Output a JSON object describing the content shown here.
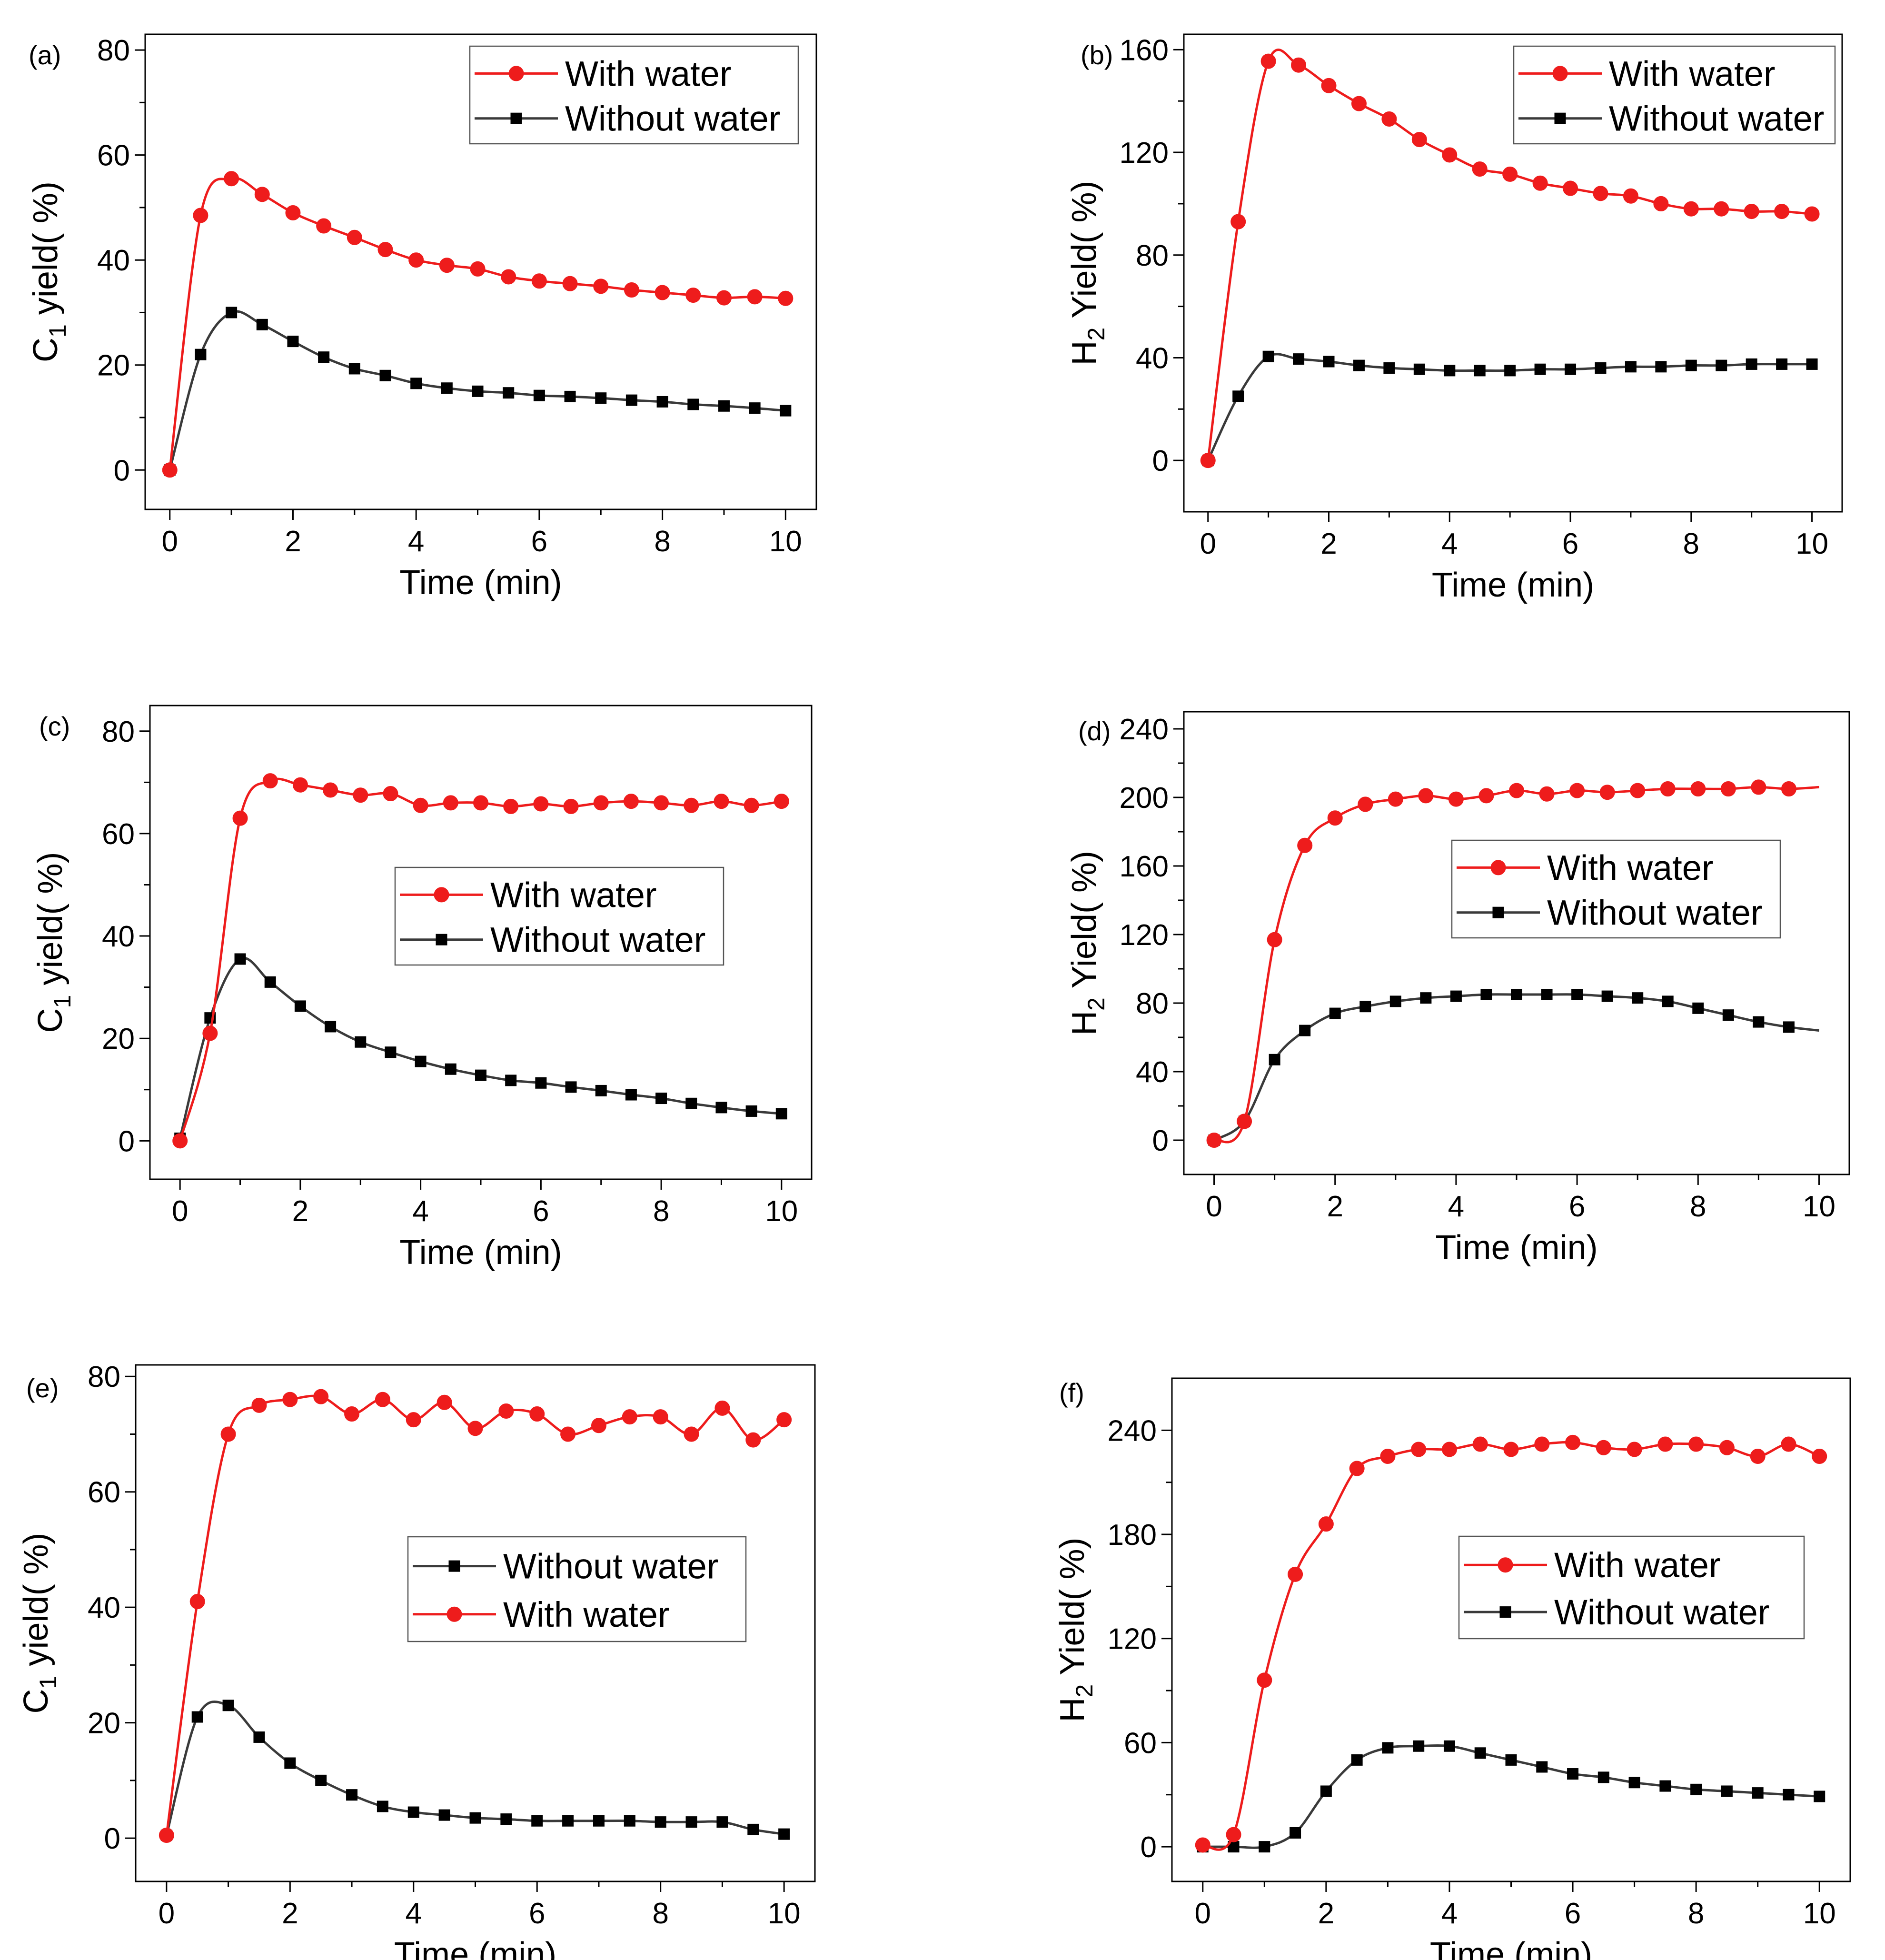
{
  "figure": {
    "background": "#ffffff"
  },
  "styles": {
    "with_color": "#ee1c1c",
    "without_color": "#000000",
    "without_line": "#3a3a3a"
  },
  "chart_data": [
    {
      "id": "a",
      "type": "line",
      "panel_label": "(a)",
      "xlabel": "Time (min)",
      "ylabel_main": "C",
      "ylabel_sub": "1",
      "ylabel_rest": " yield(   %)",
      "xlim": [
        -0.4,
        10.5
      ],
      "ylim": [
        -7.5,
        83
      ],
      "xticks": [
        0,
        2,
        4,
        6,
        8,
        10
      ],
      "yticks": [
        0,
        20,
        40,
        60,
        80
      ],
      "legend": {
        "position": "top-right",
        "order": [
          "with",
          "without"
        ]
      },
      "series": [
        {
          "key": "with",
          "name": "With water",
          "color": "#ee1c1c",
          "marker": "circle",
          "x": [
            0,
            0.5,
            1,
            1.5,
            2,
            2.5,
            3,
            3.5,
            4,
            4.5,
            5,
            5.5,
            6,
            6.5,
            7,
            7.5,
            8,
            8.5,
            9,
            9.5,
            10
          ],
          "y": [
            0,
            48.5,
            55.5,
            52.5,
            49,
            46.5,
            44.3,
            42,
            40,
            39,
            38.3,
            36.8,
            36,
            35.5,
            35,
            34.3,
            33.8,
            33.3,
            32.8,
            33,
            32.7
          ]
        },
        {
          "key": "without",
          "name": "Without water",
          "color": "#000000",
          "marker": "square",
          "x": [
            0,
            0.5,
            1,
            1.5,
            2,
            2.5,
            3,
            3.5,
            4,
            4.5,
            5,
            5.5,
            6,
            6.5,
            7,
            7.5,
            8,
            8.5,
            9,
            9.5,
            10
          ],
          "y": [
            0,
            22,
            30,
            27.7,
            24.5,
            21.5,
            19.3,
            18,
            16.5,
            15.6,
            15,
            14.7,
            14.2,
            14,
            13.7,
            13.3,
            13,
            12.5,
            12.2,
            11.8,
            11.3
          ]
        }
      ]
    },
    {
      "id": "b",
      "type": "line",
      "panel_label": "(b)",
      "xlabel": "Time (min)",
      "ylabel_main": "H",
      "ylabel_sub": "2",
      "ylabel_rest": " Yield(   %)",
      "xlim": [
        -0.4,
        10.5
      ],
      "ylim": [
        -20,
        166
      ],
      "xticks": [
        0,
        2,
        4,
        6,
        8,
        10
      ],
      "yticks": [
        0,
        40,
        80,
        120,
        160
      ],
      "legend": {
        "position": "top-right",
        "order": [
          "with",
          "without"
        ]
      },
      "series": [
        {
          "key": "with",
          "name": "With water",
          "color": "#ee1c1c",
          "marker": "circle",
          "x": [
            0,
            0.5,
            1,
            1.5,
            2,
            2.5,
            3,
            3.5,
            4,
            4.5,
            5,
            5.5,
            6,
            6.5,
            7,
            7.5,
            8,
            8.5,
            9,
            9.5,
            10
          ],
          "y": [
            0,
            93,
            155.5,
            154,
            146,
            139,
            133,
            125,
            119,
            113.5,
            111.5,
            108,
            106,
            104,
            103,
            100,
            98,
            98,
            97,
            97,
            96
          ]
        },
        {
          "key": "without",
          "name": "Without water",
          "color": "#000000",
          "marker": "square",
          "x": [
            0,
            0.5,
            1,
            1.5,
            2,
            2.5,
            3,
            3.5,
            4,
            4.5,
            5,
            5.5,
            6,
            6.5,
            7,
            7.5,
            8,
            8.5,
            9,
            9.5,
            10
          ],
          "y": [
            0,
            25,
            40.5,
            39.5,
            38.5,
            37,
            36,
            35.5,
            35,
            35,
            35,
            35.5,
            35.5,
            36,
            36.5,
            36.5,
            37,
            37,
            37.5,
            37.5,
            37.5
          ]
        }
      ]
    },
    {
      "id": "c",
      "type": "line",
      "panel_label": "(c)",
      "xlabel": "Time (min)",
      "ylabel_main": "C",
      "ylabel_sub": "1",
      "ylabel_rest": " yield(   %)",
      "xlim": [
        -0.5,
        10.5
      ],
      "ylim": [
        -7.5,
        85
      ],
      "xticks": [
        0,
        2,
        4,
        6,
        8,
        10
      ],
      "yticks": [
        0,
        20,
        40,
        60,
        80
      ],
      "legend": {
        "position": "center-right",
        "order": [
          "with",
          "without"
        ]
      },
      "series": [
        {
          "key": "with",
          "name": "With water",
          "color": "#ee1c1c",
          "marker": "circle",
          "x": [
            0,
            0.5,
            1,
            1.5,
            2,
            2.5,
            3,
            3.5,
            4,
            4.5,
            5,
            5.5,
            6,
            6.5,
            7,
            7.5,
            8,
            8.5,
            9,
            9.5,
            10
          ],
          "y": [
            0,
            21,
            63,
            70.3,
            69.5,
            68.5,
            67.5,
            67.8,
            65.5,
            66,
            66,
            65.3,
            65.8,
            65.3,
            66,
            66.3,
            66,
            65.5,
            66.3,
            65.5,
            66.3
          ]
        },
        {
          "key": "without",
          "name": "Without water",
          "color": "#000000",
          "marker": "square",
          "x": [
            0,
            0.5,
            1,
            1.5,
            2,
            2.5,
            3,
            3.5,
            4,
            4.5,
            5,
            5.5,
            6,
            6.5,
            7,
            7.5,
            8,
            8.5,
            9,
            9.5,
            10
          ],
          "y": [
            0.5,
            24,
            35.5,
            31,
            26.3,
            22.3,
            19.3,
            17.3,
            15.5,
            14,
            12.8,
            11.8,
            11.3,
            10.5,
            9.8,
            9,
            8.3,
            7.3,
            6.5,
            5.8,
            5.3
          ]
        }
      ]
    },
    {
      "id": "d",
      "type": "line",
      "panel_label": "(d)",
      "xlabel": "Time (min)",
      "ylabel_main": "H",
      "ylabel_sub": "2",
      "ylabel_rest": " Yield(   %)",
      "xlim": [
        -0.5,
        10.5
      ],
      "ylim": [
        -20,
        250
      ],
      "xticks": [
        0,
        2,
        4,
        6,
        8,
        10
      ],
      "yticks": [
        0,
        40,
        80,
        120,
        160,
        200,
        240
      ],
      "legend": {
        "position": "center-right",
        "order": [
          "with",
          "without"
        ]
      },
      "series": [
        {
          "key": "with",
          "name": "With water",
          "color": "#ee1c1c",
          "marker": "circle",
          "x": [
            0,
            0.5,
            1,
            1.5,
            2,
            2.5,
            3,
            3.5,
            4,
            4.5,
            5,
            5.5,
            6,
            6.5,
            7,
            7.5,
            8,
            8.5,
            9,
            9.5
          ],
          "y": [
            0,
            11,
            117,
            172,
            188,
            196,
            199,
            201,
            199,
            201,
            204,
            202,
            204,
            203,
            204,
            205,
            205,
            205,
            206,
            205
          ],
          "line_end": [
            10,
            206
          ]
        },
        {
          "key": "without",
          "name": "Without water",
          "color": "#000000",
          "marker": "square",
          "x": [
            0,
            0.5,
            1,
            1.5,
            2,
            2.5,
            3,
            3.5,
            4,
            4.5,
            5,
            5.5,
            6,
            6.5,
            7,
            7.5,
            8,
            8.5,
            9,
            9.5
          ],
          "y": [
            0,
            11,
            47,
            64,
            74,
            78,
            81,
            83,
            84,
            85,
            85,
            85,
            85,
            84,
            83,
            81,
            77,
            73,
            69,
            66
          ],
          "line_end": [
            10,
            64
          ]
        }
      ]
    },
    {
      "id": "e",
      "type": "line",
      "panel_label": "(e)",
      "xlabel": "Time (min)",
      "ylabel_main": "C",
      "ylabel_sub": "1",
      "ylabel_rest": " yield(   %)",
      "xlim": [
        -0.5,
        10.5
      ],
      "ylim": [
        -7.5,
        82
      ],
      "xticks": [
        0,
        2,
        4,
        6,
        8,
        10
      ],
      "yticks": [
        0,
        20,
        40,
        60,
        80
      ],
      "legend": {
        "position": "center-right",
        "order": [
          "without",
          "with"
        ]
      },
      "series": [
        {
          "key": "with",
          "name": "With water",
          "color": "#ee1c1c",
          "marker": "circle",
          "x": [
            0,
            0.5,
            1,
            1.5,
            2,
            2.5,
            3,
            3.5,
            4,
            4.5,
            5,
            5.5,
            6,
            6.5,
            7,
            7.5,
            8,
            8.5,
            9,
            9.5,
            10
          ],
          "y": [
            0.5,
            41,
            70,
            75,
            76,
            76.5,
            73.5,
            76,
            72.5,
            75.5,
            71,
            74,
            73.5,
            70,
            71.5,
            73,
            73,
            70,
            74.5,
            69,
            72.5
          ]
        },
        {
          "key": "without",
          "name": "Without water",
          "color": "#000000",
          "marker": "square",
          "x": [
            0,
            0.5,
            1,
            1.5,
            2,
            2.5,
            3,
            3.5,
            4,
            4.5,
            5,
            5.5,
            6,
            6.5,
            7,
            7.5,
            8,
            8.5,
            9,
            9.5,
            10
          ],
          "y": [
            0.5,
            21,
            23,
            17.5,
            13,
            10,
            7.5,
            5.5,
            4.5,
            4,
            3.5,
            3.3,
            3,
            3,
            3,
            3,
            2.8,
            2.8,
            2.8,
            1.5,
            0.7
          ]
        }
      ]
    },
    {
      "id": "f",
      "type": "line",
      "panel_label": "(f)",
      "xlabel": "Time (min)",
      "ylabel_main": "H",
      "ylabel_sub": "2",
      "ylabel_rest": " Yield(   %)",
      "xlim": [
        -0.5,
        10.5
      ],
      "ylim": [
        -20,
        270
      ],
      "xticks": [
        0,
        2,
        4,
        6,
        8,
        10
      ],
      "yticks": [
        0,
        60,
        120,
        180,
        240
      ],
      "legend": {
        "position": "center-right",
        "order": [
          "with",
          "without"
        ]
      },
      "series": [
        {
          "key": "with",
          "name": "With water",
          "color": "#ee1c1c",
          "marker": "circle",
          "x": [
            0,
            0.5,
            1,
            1.5,
            2,
            2.5,
            3,
            3.5,
            4,
            4.5,
            5,
            5.5,
            6,
            6.5,
            7,
            7.5,
            8,
            8.5,
            9,
            9.5,
            10
          ],
          "y": [
            1,
            7,
            96,
            157,
            186,
            218,
            225,
            229,
            229,
            232,
            229,
            232,
            233,
            230,
            229,
            232,
            232,
            230,
            225,
            232,
            225
          ]
        },
        {
          "key": "without",
          "name": "Without water",
          "color": "#000000",
          "marker": "square",
          "x": [
            0,
            0.5,
            1,
            1.5,
            2,
            2.5,
            3,
            3.5,
            4,
            4.5,
            5,
            5.5,
            6,
            6.5,
            7,
            7.5,
            8,
            8.5,
            9,
            9.5,
            10
          ],
          "y": [
            0,
            0,
            0,
            8,
            32,
            50,
            57,
            58,
            58,
            54,
            50,
            46,
            42,
            40,
            37,
            35,
            33,
            32,
            31,
            30,
            29
          ]
        }
      ]
    }
  ]
}
